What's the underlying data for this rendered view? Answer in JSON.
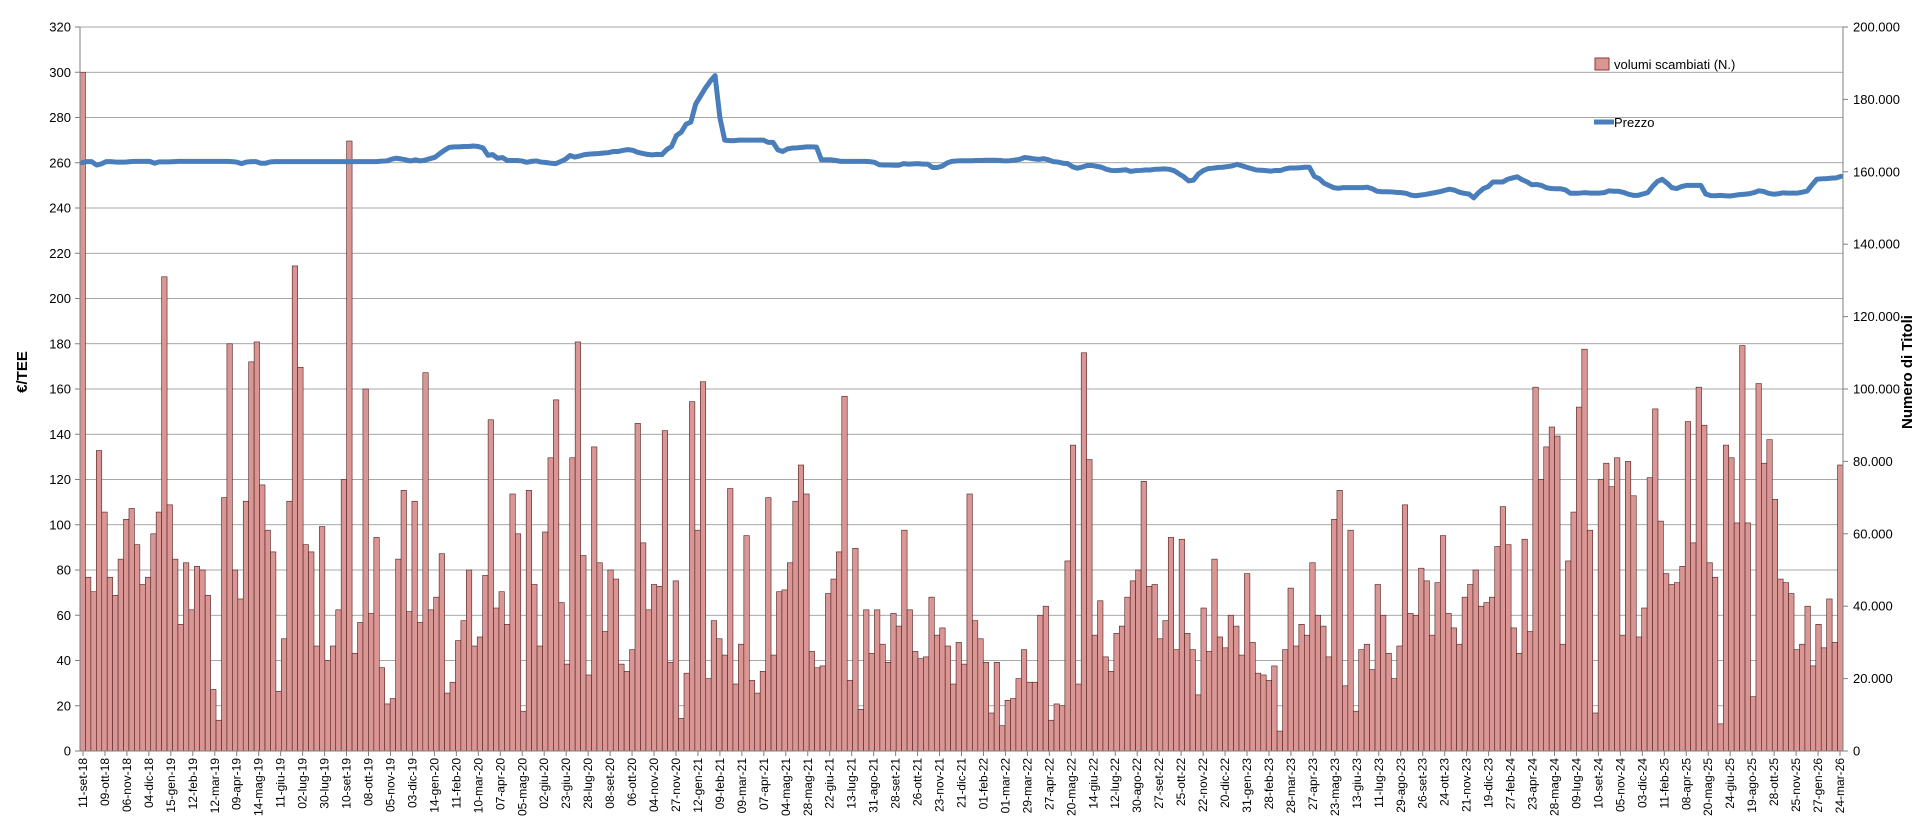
{
  "chart_data": {
    "type": "bar+line",
    "title": "",
    "ylabel_left": "€/TEE",
    "ylabel_right": "Numero di Titoli",
    "ylim_left": [
      0,
      320
    ],
    "ylim_right": [
      0,
      200000
    ],
    "yticks_left": [
      "0",
      "20",
      "40",
      "60",
      "80",
      "100",
      "120",
      "140",
      "160",
      "180",
      "200",
      "220",
      "240",
      "260",
      "280",
      "300",
      "320"
    ],
    "yticks_right": [
      "0",
      "20.000",
      "40.000",
      "60.000",
      "80.000",
      "100.000",
      "120.000",
      "140.000",
      "160.000",
      "180.000",
      "200.000"
    ],
    "grid": true,
    "legend_position": "top-right",
    "bar_color": "#d99694",
    "line_color": "#4a7ebb",
    "x_tick_labels": [
      "11-set-18",
      "09-ott-18",
      "06-nov-18",
      "04-dic-18",
      "15-gen-19",
      "12-feb-19",
      "12-mar-19",
      "09-apr-19",
      "14-mag-19",
      "11-giu-19",
      "02-lug-19",
      "30-lug-19",
      "10-set-19",
      "08-ott-19",
      "05-nov-19",
      "03-dic-19",
      "14-gen-20",
      "11-feb-20",
      "10-mar-20",
      "07-apr-20",
      "05-mag-20",
      "02-giu-20",
      "23-giu-20",
      "28-lug-20",
      "08-set-20",
      "06-ott-20",
      "04-nov-20",
      "27-nov-20",
      "12-gen-21",
      "09-feb-21",
      "09-mar-21",
      "07-apr-21",
      "04-mag-21",
      "28-mag-21",
      "22-giu-21",
      "13-lug-21",
      "31-ago-21",
      "28-set-21",
      "26-ott-21",
      "23-nov-21",
      "21-dic-21",
      "01-feb-22",
      "01-mar-22",
      "29-mar-22",
      "27-apr-22",
      "20-mag-22",
      "14-giu-22",
      "12-lug-22",
      "30-ago-22",
      "27-set-22",
      "25-ott-22",
      "22-nov-22",
      "20-dic-22",
      "31-gen-23",
      "28-feb-23",
      "28-mar-23",
      "27-apr-23",
      "23-mag-23",
      "13-giu-23",
      "11-lug-23",
      "29-ago-23",
      "26-set-23",
      "24-ott-23",
      "21-nov-23",
      "19-dic-23",
      "27-feb-24",
      "23-apr-24",
      "28-mag-24",
      "09-lug-24",
      "10-set-24",
      "05-nov-24",
      "03-dic-24",
      "11-feb-25",
      "08-apr-25",
      "20-mag-25",
      "24-giu-25",
      "19-ago-25",
      "28-ott-25",
      "25-nov-25",
      "27-gen-26",
      "24-mar-26"
    ],
    "series": [
      {
        "name": "volumi scambiati (N.)",
        "axis": "right",
        "kind": "bar",
        "values": [
          187500,
          48000,
          44000,
          83000,
          66000,
          48000,
          43000,
          53000,
          64000,
          67000,
          57000,
          46000,
          48000,
          60000,
          66000,
          131000,
          68000,
          53000,
          35000,
          52000,
          39000,
          51000,
          50000,
          43000,
          17000,
          8500,
          70000,
          112500,
          50000,
          42000,
          69000,
          107500,
          113000,
          73500,
          61000,
          55000,
          16500,
          31000,
          69000,
          134000,
          106000,
          57000,
          55000,
          29000,
          62000,
          25000,
          29000,
          39000,
          75000,
          168500,
          27000,
          35500,
          100000,
          38000,
          59000,
          23000,
          13000,
          14500,
          53000,
          72000,
          38500,
          69000,
          35500,
          104500,
          39000,
          42500,
          54500,
          16000,
          19000,
          30500,
          36000,
          50000,
          29000,
          31500,
          48500,
          91500,
          39500,
          44000,
          35000,
          71000,
          60000,
          11000,
          72000,
          46000,
          29000,
          60500,
          81000,
          97000,
          41000,
          24000,
          81000,
          113000,
          54000,
          21000,
          84000,
          52000,
          33000,
          50000,
          47500,
          24000,
          22000,
          28000,
          90500,
          57500,
          39000,
          46000,
          45500,
          88500,
          24500,
          47000,
          9000,
          21500,
          96500,
          61000,
          102000,
          20000,
          36000,
          31000,
          26500,
          72500,
          18500,
          29500,
          59500,
          19500,
          16000,
          22000,
          70000,
          26500,
          44000,
          44500,
          52000,
          69000,
          79000,
          71000,
          27500,
          23000,
          23500,
          43500,
          47500,
          55000,
          98000,
          19500,
          56000,
          11500,
          39000,
          27000,
          39000,
          29500,
          24500,
          38000,
          34500,
          61000,
          39000,
          27500,
          25500,
          26000,
          42500,
          32000,
          34000,
          29000,
          18500,
          30000,
          24000,
          71000,
          36000,
          31000,
          24500,
          10500,
          24500,
          7000,
          14000,
          14500,
          20000,
          28000,
          19000,
          19000,
          37500,
          40000,
          8500,
          13000,
          12500,
          52500,
          84500,
          18500,
          110000,
          80500,
          32000,
          41500,
          26000,
          22000,
          32500,
          34500,
          42500,
          47000,
          50000,
          74500,
          45500,
          46000,
          31000,
          36000,
          59000,
          28000,
          58500,
          32500,
          28000,
          15500,
          39500,
          27500,
          53000,
          31500,
          28500,
          37500,
          34500,
          26500,
          49000,
          30000,
          21500,
          21000,
          19500,
          23500,
          5500,
          28000,
          45000,
          29000,
          35000,
          32000,
          52000,
          37500,
          34500,
          26000,
          64000,
          72000,
          18000,
          61000,
          11000,
          28000,
          29500,
          22500,
          46000,
          37500,
          27000,
          20000,
          29000,
          68000,
          38000,
          37500,
          50500,
          47000,
          32000,
          46500,
          59500,
          38000,
          34000,
          29500,
          42500,
          46000,
          50000,
          40000,
          41000,
          42500,
          56500,
          67500,
          57000,
          34000,
          27000,
          58500,
          33000,
          100500,
          75000,
          84000,
          89500,
          87000,
          29500,
          52500,
          66000,
          95000,
          111000,
          61000,
          10500,
          75000,
          79500,
          73000,
          81000,
          32000,
          80000,
          70500,
          31500,
          39500,
          75500,
          94500,
          63500,
          49000,
          46000,
          46500,
          51000,
          91000,
          57500,
          100500,
          90000,
          52000,
          48000,
          7500,
          84500,
          81000,
          63000,
          112000,
          63000,
          15000,
          101500,
          79500,
          86000,
          69500,
          47500,
          46500,
          43500,
          28000,
          29500,
          40000,
          23500,
          35000,
          28500,
          42000,
          30000,
          79000
        ]
      },
      {
        "name": "Prezzo",
        "axis": "left",
        "kind": "line",
        "values": [
          260,
          260.5,
          260.5,
          259,
          259.5,
          260.5,
          260.5,
          260.3,
          260.3,
          260.3,
          260.5,
          260.6,
          260.6,
          260.6,
          260.6,
          259.8,
          260.4,
          260.4,
          260.4,
          260.5,
          260.6,
          260.6,
          260.6,
          260.6,
          260.6,
          260.6,
          260.6,
          260.6,
          260.6,
          260.6,
          260.6,
          260.5,
          260.3,
          259.6,
          260.3,
          260.5,
          260.5,
          259.8,
          259.8,
          260.4,
          260.5,
          260.5,
          260.5,
          260.5,
          260.5,
          260.5,
          260.5,
          260.5,
          260.5,
          260.5,
          260.5,
          260.5,
          260.5,
          260.5,
          260.5,
          260.5,
          260.5,
          260.5,
          260.5,
          260.5,
          260.5,
          260.5,
          260.7,
          260.8,
          261.5,
          262,
          261.7,
          261.3,
          260.8,
          261.3,
          260.8,
          261.2,
          261.8,
          262.4,
          264,
          265.5,
          266.8,
          267,
          267,
          267.2,
          267.2,
          267.4,
          267.2,
          266.5,
          263.3,
          263.6,
          262,
          262.3,
          261,
          261,
          261,
          260.8,
          260.2,
          260.6,
          260.8,
          260.3,
          260.1,
          259.8,
          259.6,
          260.5,
          261.5,
          263.2,
          262.5,
          263,
          263.6,
          263.8,
          264,
          264.1,
          264.3,
          264.5,
          265,
          265,
          265.5,
          265.8,
          265.5,
          264.6,
          264.1,
          263.7,
          263.5,
          263.7,
          263.6,
          265.8,
          267.2,
          272,
          273.5,
          277,
          278,
          286,
          289.5,
          293,
          296,
          298.5,
          280,
          270,
          269.8,
          269.8,
          270,
          270,
          270,
          270,
          270,
          270,
          269,
          269,
          265.7,
          265,
          266.1,
          266.5,
          266.6,
          266.8,
          267,
          267,
          266.9,
          261.3,
          261.3,
          261.3,
          261,
          260.6,
          260.6,
          260.6,
          260.6,
          260.6,
          260.6,
          260.5,
          260.2,
          259.1,
          259,
          259,
          258.9,
          258.9,
          259.6,
          259.4,
          259.5,
          259.6,
          259.4,
          259.4,
          257.9,
          257.9,
          258.5,
          259.9,
          260.6,
          260.8,
          260.9,
          260.9,
          260.9,
          261,
          261,
          261.1,
          261.1,
          261.1,
          261,
          260.8,
          260.9,
          261.2,
          261.5,
          262.3,
          262.1,
          261.7,
          261.5,
          261.8,
          261.3,
          260.5,
          260.3,
          259.8,
          259.6,
          258.2,
          257.6,
          258.1,
          258.8,
          258.8,
          258.4,
          258,
          257.1,
          256.6,
          256.5,
          256.7,
          256.9,
          256.2,
          256.5,
          256.6,
          256.8,
          256.8,
          257.1,
          257.2,
          257.3,
          257.1,
          256.5,
          255.1,
          253.8,
          252,
          252.3,
          255,
          256.5,
          257.4,
          257.6,
          257.9,
          258,
          258.3,
          258.6,
          259.3,
          258.7,
          258,
          257.4,
          256.8,
          256.7,
          256.5,
          256.3,
          256.6,
          256.6,
          257.3,
          257.7,
          257.7,
          257.8,
          258,
          258,
          254,
          253,
          251,
          250,
          249,
          248.7,
          249,
          249,
          249,
          249,
          249,
          249.2,
          248.5,
          247.4,
          247.2,
          247.2,
          247.1,
          246.9,
          246.8,
          246.5,
          245.7,
          245.4,
          245.7,
          246,
          246.4,
          246.8,
          247.2,
          247.8,
          248.3,
          247.9,
          247,
          246.5,
          246.2,
          244.5,
          246.8,
          248.6,
          249.5,
          251.5,
          251.5,
          251.5,
          252.7,
          253.3,
          253.8,
          252.5,
          251.6,
          250.3,
          250.4,
          250,
          249,
          248.6,
          248.5,
          248.5,
          248,
          246.5,
          246.5,
          246.6,
          246.8,
          246.6,
          246.6,
          246.6,
          246.8,
          247.6,
          247.4,
          247.4,
          246.9,
          246.1,
          245.6,
          245.6,
          246.2,
          246.8,
          249.5,
          251.7,
          252.7,
          251,
          249,
          248.6,
          249.5,
          250,
          250,
          250,
          250,
          246.2,
          245.5,
          245.4,
          245.6,
          245.4,
          245.3,
          245.6,
          245.9,
          246.1,
          246.3,
          246.8,
          247.6,
          247.3,
          246.5,
          246.1,
          246.3,
          246.7,
          246.6,
          246.6,
          246.6,
          247,
          247.5,
          250.2,
          252.7,
          252.9,
          253,
          253.2,
          253.3,
          254
        ]
      }
    ]
  }
}
